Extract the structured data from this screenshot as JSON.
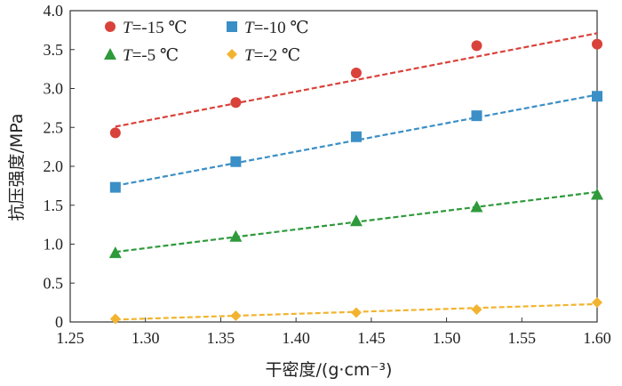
{
  "chart_data": {
    "type": "scatter",
    "xlabel": "干密度/(g·cm⁻³)",
    "ylabel": "抗压强度/MPa",
    "xlim": [
      1.25,
      1.6
    ],
    "ylim": [
      0.0,
      4.0
    ],
    "xticks": [
      "1.25",
      "1.30",
      "1.35",
      "1.40",
      "1.45",
      "1.50",
      "1.55",
      "1.60"
    ],
    "yticks": [
      "0",
      "0.5",
      "1.0",
      "1.5",
      "2.0",
      "2.5",
      "3.0",
      "3.5",
      "4.0"
    ],
    "grid": false,
    "legend_position": "top-left",
    "series": [
      {
        "name": "T=-15 ℃",
        "legend_italic": "T",
        "legend_rest": "=-15 ℃",
        "marker": "circle",
        "color": "#d9423a",
        "x": [
          1.28,
          1.36,
          1.44,
          1.52,
          1.6
        ],
        "y": [
          2.43,
          2.82,
          3.2,
          3.55,
          3.57
        ],
        "fit": [
          [
            1.28,
            2.51
          ],
          [
            1.6,
            3.71
          ]
        ]
      },
      {
        "name": "T=-10 ℃",
        "legend_italic": "T",
        "legend_rest": "=-10 ℃",
        "marker": "square",
        "color": "#3a8fc6",
        "x": [
          1.28,
          1.36,
          1.44,
          1.52,
          1.6
        ],
        "y": [
          1.73,
          2.06,
          2.38,
          2.65,
          2.9
        ],
        "fit": [
          [
            1.28,
            1.75
          ],
          [
            1.6,
            2.92
          ]
        ]
      },
      {
        "name": "T=-5 ℃",
        "legend_italic": "T",
        "legend_rest": "=-5 ℃",
        "marker": "triangle",
        "color": "#2e9a3b",
        "x": [
          1.28,
          1.36,
          1.44,
          1.52,
          1.6
        ],
        "y": [
          0.89,
          1.1,
          1.3,
          1.48,
          1.64
        ],
        "fit": [
          [
            1.28,
            0.9
          ],
          [
            1.6,
            1.67
          ]
        ]
      },
      {
        "name": "T=-2 ℃",
        "legend_italic": "T",
        "legend_rest": "=-2 ℃",
        "marker": "diamond",
        "color": "#f2b430",
        "x": [
          1.28,
          1.36,
          1.44,
          1.52,
          1.6
        ],
        "y": [
          0.04,
          0.08,
          0.12,
          0.16,
          0.25
        ],
        "fit": [
          [
            1.28,
            0.03
          ],
          [
            1.6,
            0.23
          ]
        ]
      }
    ]
  }
}
